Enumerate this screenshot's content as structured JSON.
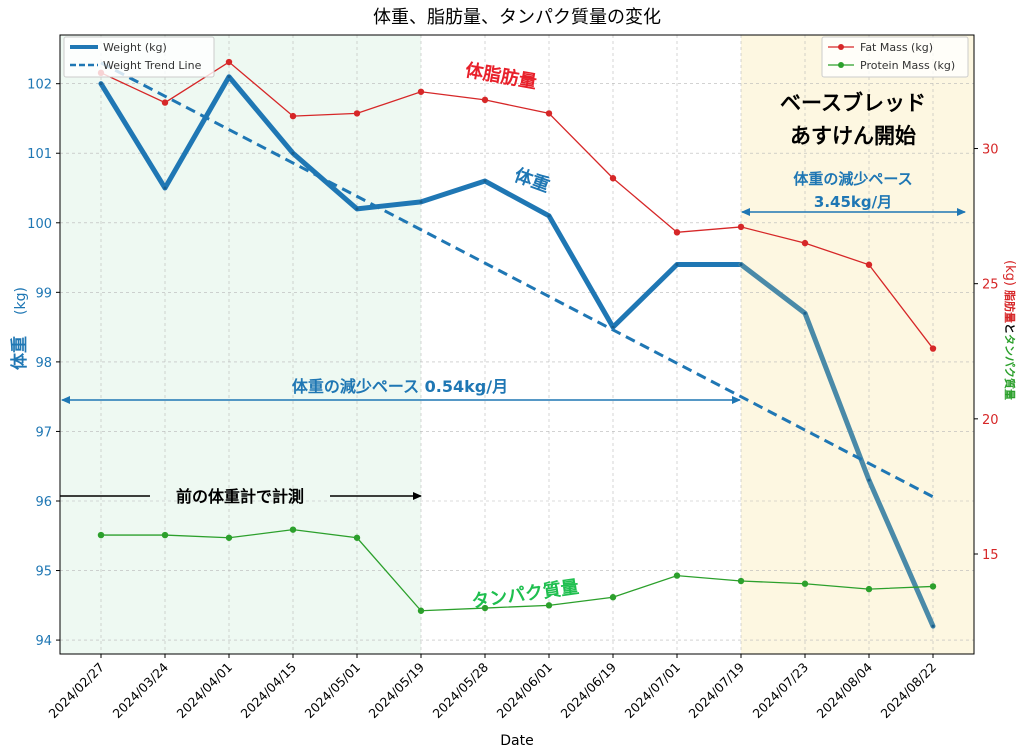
{
  "chart_data": {
    "type": "line",
    "title": "体重、脂肪量、タンパク質量の変化",
    "xlabel": "Date",
    "ylabel_left": "体重",
    "ylabel_left_unit": "(kg)",
    "ylabel_right_fat": "脂肪量",
    "ylabel_right_and": "と",
    "ylabel_right_protein": "タンパク質量",
    "ylabel_right_unit": "(kg)",
    "x": [
      "2024/02/27",
      "2024/03/24",
      "2024/04/01",
      "2024/04/15",
      "2024/05/01",
      "2024/05/19",
      "2024/05/28",
      "2024/06/01",
      "2024/06/19",
      "2024/07/01",
      "2024/07/19",
      "2024/07/23",
      "2024/08/04",
      "2024/08/22"
    ],
    "ylim_left": [
      93.8,
      102.7
    ],
    "yticks_left": [
      94,
      95,
      96,
      97,
      98,
      99,
      100,
      101,
      102
    ],
    "ylim_right": [
      11.3,
      34.2
    ],
    "yticks_right": [
      15,
      20,
      25,
      30
    ],
    "grid": true,
    "series": [
      {
        "name": "Weight (kg)",
        "axis": "left",
        "color": "#1f77b4",
        "values": [
          102.0,
          100.5,
          102.1,
          101.0,
          100.2,
          100.3,
          100.6,
          100.1,
          98.5,
          99.4,
          99.4,
          98.7,
          96.3,
          94.2
        ]
      },
      {
        "name": "Weight Trend Line",
        "axis": "left",
        "color": "#1f77b4",
        "style": "dashed",
        "values": [
          102.3,
          101.82,
          101.34,
          100.86,
          100.38,
          99.9,
          99.42,
          98.94,
          98.46,
          97.98,
          97.5,
          97.02,
          96.54,
          96.06
        ]
      },
      {
        "name": "Fat Mass (kg)",
        "axis": "right",
        "color": "#d62728",
        "values": [
          32.8,
          31.7,
          33.2,
          31.2,
          31.3,
          32.1,
          31.8,
          31.3,
          28.9,
          26.9,
          27.1,
          26.5,
          25.7,
          22.6
        ]
      },
      {
        "name": "Protein Mass (kg)",
        "axis": "right",
        "color": "#2ca02c",
        "values": [
          15.7,
          15.7,
          15.6,
          15.9,
          15.6,
          12.9,
          13.0,
          13.1,
          13.4,
          14.2,
          14.0,
          13.9,
          13.7,
          13.8
        ]
      }
    ],
    "regions": [
      {
        "from": "start",
        "to": "2024/05/19",
        "color": "#eef9f2"
      },
      {
        "from": "2024/07/19",
        "to": "end",
        "color": "#fdf7e1"
      }
    ],
    "legend_left": {
      "placement": "top-left",
      "items": [
        "Weight (kg)",
        "Weight Trend Line"
      ]
    },
    "legend_right": {
      "placement": "top-right",
      "items": [
        "Fat Mass (kg)",
        "Protein Mass (kg)"
      ]
    },
    "annotations": {
      "fat_label": "体脂肪量",
      "weight_label": "体重",
      "protein_label": "タンパク質量",
      "base_bread_line1": "ベースブレッド",
      "base_bread_line2": "あすけん開始",
      "pace_recent_line1": "体重の減少ペース",
      "pace_recent_line2": "3.45kg/月",
      "pace_overall": "体重の減少ペース 0.54kg/月",
      "old_scale": "前の体重計で計測"
    },
    "colors": {
      "weight": "#1f77b4",
      "fat": "#d62728",
      "protein": "#2ca02c",
      "fat_label": "#e8202a",
      "protein_label": "#1fbf4f"
    }
  }
}
